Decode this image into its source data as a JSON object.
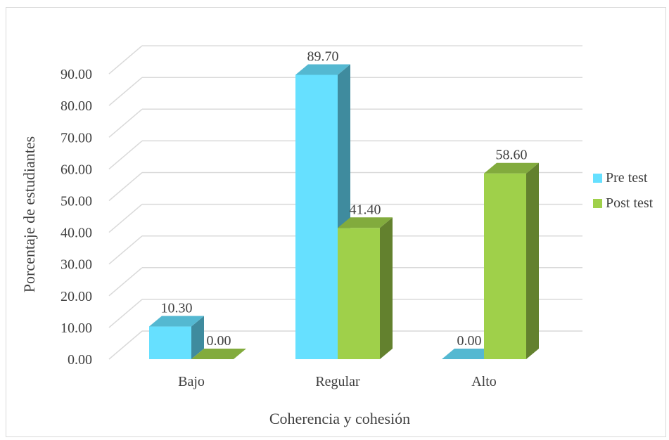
{
  "chart_data": {
    "type": "bar",
    "title": "",
    "xlabel": "Coherencia y cohesión",
    "ylabel": "Porcentaje de estudiantes",
    "categories": [
      "Bajo",
      "Regular",
      "Alto"
    ],
    "series": [
      {
        "name": "Pre test",
        "values": [
          10.3,
          89.7,
          0.0
        ],
        "labels": [
          "10.30",
          "89.70",
          "0.00"
        ],
        "color": "#66e0ff"
      },
      {
        "name": "Post test",
        "values": [
          0.0,
          41.4,
          58.6
        ],
        "labels": [
          "0.00",
          "41.40",
          "58.60"
        ],
        "color": "#9fd04a"
      }
    ],
    "ylim": [
      0,
      90
    ],
    "yticks": [
      0,
      10,
      20,
      30,
      40,
      50,
      60,
      70,
      80,
      90
    ],
    "ytick_labels": [
      "0.00",
      "10.00",
      "20.00",
      "30.00",
      "40.00",
      "50.00",
      "60.00",
      "70.00",
      "80.00",
      "90.00"
    ],
    "grid": true,
    "legend": "right",
    "style": "3d-clustered-column"
  }
}
